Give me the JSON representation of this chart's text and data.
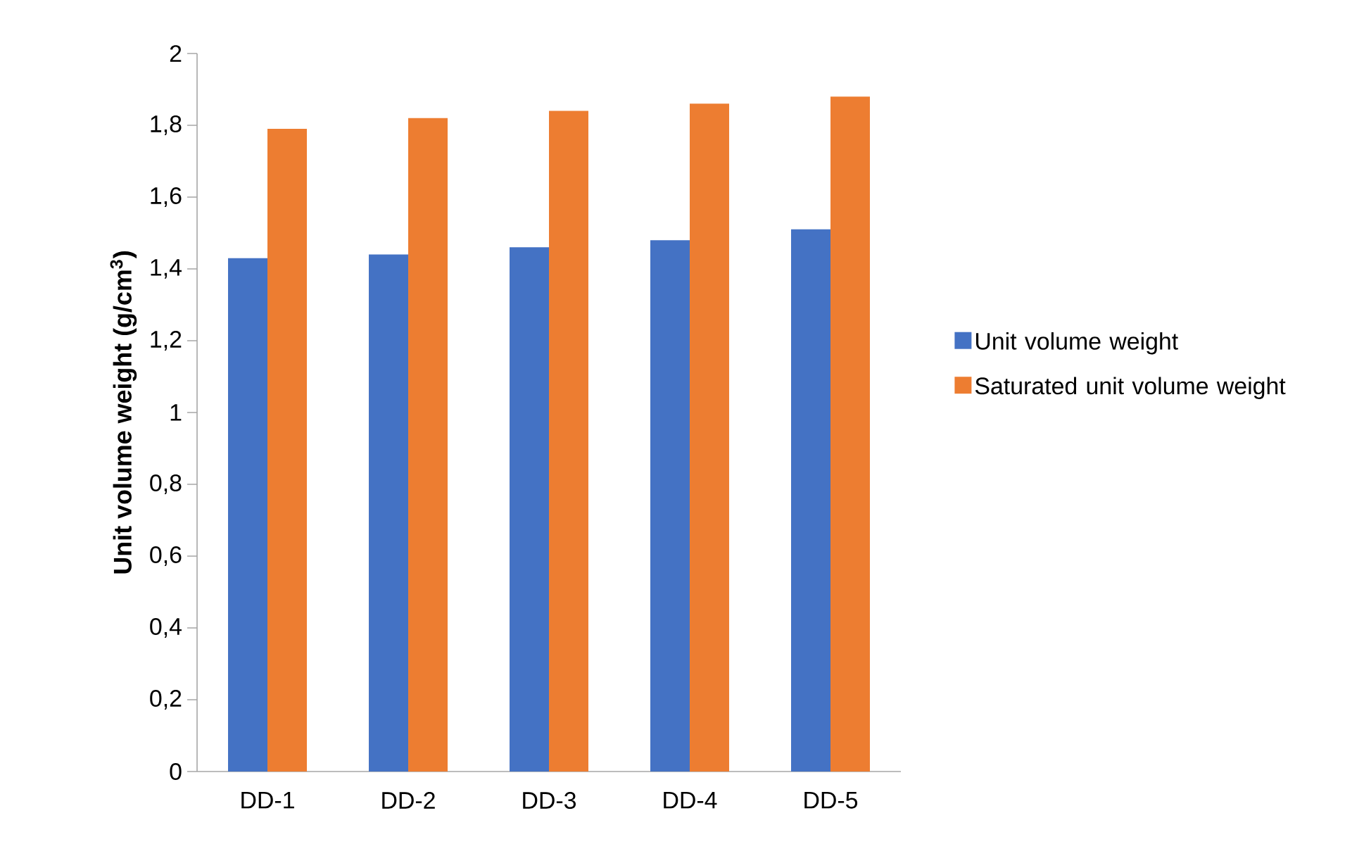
{
  "chart_data": {
    "type": "bar",
    "ylabel": "Unit volume weight (g/cm$^{3}$)",
    "categories": [
      "DD-1",
      "DD-2",
      "DD-3",
      "DD-4",
      "DD-5"
    ],
    "series": [
      {
        "name": "Unit volume weight",
        "color": "#4472c4",
        "values": [
          1.43,
          1.44,
          1.46,
          1.48,
          1.51
        ]
      },
      {
        "name": "Saturated unit volume weight",
        "color": "#ed7d31",
        "values": [
          1.79,
          1.82,
          1.84,
          1.86,
          1.88
        ]
      }
    ],
    "ylim": [
      0,
      2
    ],
    "yticks": [
      0,
      {
        "value": 0.2,
        "label": "0,2"
      },
      {
        "value": 0.4,
        "label": "0,4"
      },
      {
        "value": 0.6,
        "label": "0,6"
      },
      {
        "value": 0.8,
        "label": "0,8"
      },
      1,
      {
        "value": 1.2,
        "label": "1,2"
      },
      {
        "value": 1.4,
        "label": "1,4"
      },
      {
        "value": 1.6,
        "label": "1,6"
      },
      {
        "value": 1.8,
        "label": "1,8"
      },
      2
    ],
    "legend": "right"
  }
}
